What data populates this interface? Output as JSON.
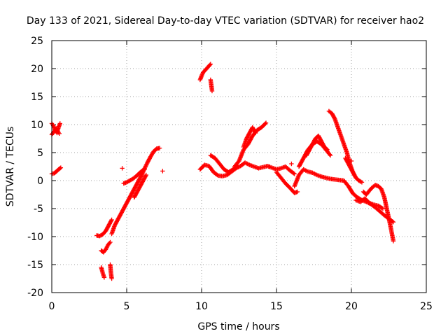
{
  "chart_data": {
    "type": "scatter",
    "title": "Day 133 of 2021, Sidereal Day-to-day VTEC variation (SDTVAR) for receiver hao2",
    "xlabel": "GPS time / hours",
    "ylabel": "SDTVAR / TECUs",
    "xlim": [
      0,
      25
    ],
    "ylim": [
      -20,
      25
    ],
    "xticks": [
      "0",
      "5",
      "10",
      "15",
      "20",
      "25"
    ],
    "yticks": [
      "-20",
      "-15",
      "-10",
      "-5",
      "0",
      "5",
      "10",
      "15",
      "20",
      "25"
    ],
    "grid": true,
    "marker": "plus",
    "color": "#ff0000",
    "series": [
      {
        "segments": [
          {
            "x": [
              0.0,
              0.1,
              0.2,
              0.3,
              0.35,
              0.45,
              0.55
            ],
            "y": [
              10.2,
              9.8,
              9.2,
              8.8,
              8.5,
              9.5,
              10.2
            ]
          },
          {
            "x": [
              0.0,
              0.1,
              0.2,
              0.3,
              0.4,
              0.5
            ],
            "y": [
              8.2,
              8.6,
              9.0,
              9.3,
              8.8,
              8.4
            ]
          },
          {
            "x": [
              0.0,
              0.15,
              0.3,
              0.45,
              0.6
            ],
            "y": [
              1.2,
              1.3,
              1.6,
              2.0,
              2.3
            ]
          },
          {
            "x": [
              3.0,
              3.2,
              3.4,
              3.6,
              3.8,
              4.0
            ],
            "y": [
              -9.8,
              -9.9,
              -9.6,
              -9.0,
              -8.0,
              -7.0
            ]
          },
          {
            "x": [
              3.3,
              3.45,
              3.6,
              3.75,
              3.9
            ],
            "y": [
              -12.5,
              -12.8,
              -12.3,
              -11.5,
              -11.0
            ]
          },
          {
            "x": [
              3.3,
              3.4,
              3.5
            ],
            "y": [
              -15.5,
              -16.5,
              -17.3
            ]
          },
          {
            "x": [
              3.9,
              3.95,
              4.0
            ],
            "y": [
              -15.0,
              -16.5,
              -17.5
            ]
          },
          {
            "x": [
              4.0,
              4.2,
              4.4,
              4.6,
              4.8,
              5.0,
              5.2,
              5.4,
              5.6,
              5.8,
              6.0,
              6.2,
              6.4,
              6.6,
              6.8,
              7.0,
              7.2
            ],
            "y": [
              -9.5,
              -8.0,
              -7.0,
              -6.0,
              -5.0,
              -4.0,
              -3.0,
              -2.0,
              -1.0,
              0.0,
              1.0,
              2.2,
              3.3,
              4.3,
              5.2,
              5.7,
              5.8
            ]
          },
          {
            "x": [
              4.8,
              5.0,
              5.2,
              5.4,
              5.6,
              5.8,
              6.0,
              6.2
            ],
            "y": [
              -0.5,
              -0.3,
              0.0,
              0.3,
              0.7,
              1.2,
              1.7,
              2.0
            ]
          },
          {
            "x": [
              5.5,
              5.7,
              5.9,
              6.1,
              6.3
            ],
            "y": [
              -3.0,
              -2.0,
              -1.0,
              0.0,
              1.0
            ]
          },
          {
            "x": [
              4.7
            ],
            "y": [
              2.2
            ]
          },
          {
            "x": [
              7.4
            ],
            "y": [
              1.7
            ]
          },
          {
            "x": [
              9.9,
              10.0,
              10.1,
              10.2,
              10.3,
              10.4,
              10.5,
              10.6
            ],
            "y": [
              18.0,
              18.7,
              19.3,
              19.6,
              19.9,
              20.2,
              20.5,
              20.8
            ]
          },
          {
            "x": [
              10.6,
              10.65,
              10.7
            ],
            "y": [
              18.0,
              17.0,
              16.0
            ]
          },
          {
            "x": [
              9.9,
              10.2,
              10.5,
              10.8,
              11.1,
              11.4,
              11.7,
              12.0,
              12.3,
              12.6,
              12.9,
              13.2,
              13.5,
              13.8,
              14.1,
              14.4,
              14.7,
              15.0,
              15.3,
              15.6,
              15.9,
              16.2
            ],
            "y": [
              2.0,
              2.8,
              2.6,
              1.5,
              0.9,
              0.8,
              1.0,
              1.6,
              2.2,
              2.6,
              3.2,
              2.8,
              2.5,
              2.2,
              2.4,
              2.6,
              2.3,
              2.0,
              2.2,
              2.5,
              1.8,
              1.2
            ]
          },
          {
            "x": [
              10.6,
              10.9,
              11.2,
              11.5,
              11.8,
              12.1,
              12.4
            ],
            "y": [
              4.5,
              4.0,
              3.0,
              2.0,
              1.5,
              2.0,
              2.5
            ]
          },
          {
            "x": [
              12.2,
              12.5,
              12.8,
              13.1,
              13.4,
              13.7,
              14.0,
              14.3
            ],
            "y": [
              2.5,
              3.5,
              5.5,
              6.5,
              8.0,
              9.0,
              9.5,
              10.3
            ]
          },
          {
            "x": [
              12.8,
              13.0,
              13.2,
              13.4,
              13.6
            ],
            "y": [
              6.0,
              7.5,
              8.5,
              9.5,
              8.5
            ]
          },
          {
            "x": [
              15.0,
              15.3,
              15.6,
              15.9,
              16.2,
              16.4
            ],
            "y": [
              1.5,
              0.5,
              -0.5,
              -1.3,
              -2.2,
              -2.0
            ]
          },
          {
            "x": [
              16.2,
              16.5,
              16.8,
              17.1,
              17.4,
              17.7,
              18.0,
              18.3,
              18.6,
              18.9,
              19.2,
              19.5,
              19.8,
              20.1,
              20.4,
              20.7,
              21.0,
              21.3,
              21.6,
              21.9,
              22.2,
              22.5,
              22.8
            ],
            "y": [
              -1.0,
              1.0,
              2.0,
              1.6,
              1.4,
              1.0,
              0.7,
              0.5,
              0.3,
              0.2,
              0.1,
              0.0,
              -1.0,
              -2.3,
              -3.0,
              -3.5,
              -3.8,
              -4.2,
              -4.8,
              -5.5,
              -6.2,
              -6.8,
              -7.4
            ]
          },
          {
            "x": [
              16.5,
              16.8,
              17.1,
              17.4,
              17.7,
              18.0,
              18.3,
              18.6
            ],
            "y": [
              2.5,
              4.0,
              5.5,
              6.5,
              7.0,
              6.5,
              5.5,
              4.5
            ]
          },
          {
            "x": [
              17.0,
              17.2,
              17.4,
              17.6,
              17.8,
              18.0,
              18.2,
              18.4
            ],
            "y": [
              4.5,
              5.5,
              6.5,
              7.5,
              8.0,
              7.0,
              6.0,
              5.5
            ]
          },
          {
            "x": [
              18.5,
              18.7,
              18.9,
              19.1,
              19.3,
              19.5,
              19.7,
              19.9,
              20.1,
              20.3,
              20.5,
              20.7
            ],
            "y": [
              12.4,
              12.0,
              11.0,
              9.5,
              8.0,
              6.5,
              5.0,
              3.0,
              1.5,
              0.5,
              0.0,
              -0.3
            ]
          },
          {
            "x": [
              19.6,
              19.8,
              20.0,
              20.2
            ],
            "y": [
              4.0,
              3.0,
              2.0,
              1.0
            ]
          },
          {
            "x": [
              20.8,
              21.0,
              21.2,
              21.4,
              21.6,
              21.8,
              22.0,
              22.2,
              22.4,
              22.6,
              22.8
            ],
            "y": [
              -2.0,
              -2.5,
              -1.8,
              -1.2,
              -0.8,
              -1.0,
              -1.5,
              -3.0,
              -5.5,
              -8.0,
              -10.8
            ]
          },
          {
            "x": [
              20.3,
              20.6,
              20.9,
              21.2,
              21.5,
              21.8,
              22.1
            ],
            "y": [
              -3.5,
              -3.8,
              -3.2,
              -4.0,
              -4.3,
              -4.5,
              -5.0
            ]
          },
          {
            "x": [
              18.3
            ],
            "y": [
              5.5
            ]
          },
          {
            "x": [
              20.0
            ],
            "y": [
              3.5
            ]
          },
          {
            "x": [
              14.5
            ],
            "y": [
              2.5
            ]
          },
          {
            "x": [
              16.0
            ],
            "y": [
              3.0
            ]
          }
        ]
      }
    ]
  }
}
